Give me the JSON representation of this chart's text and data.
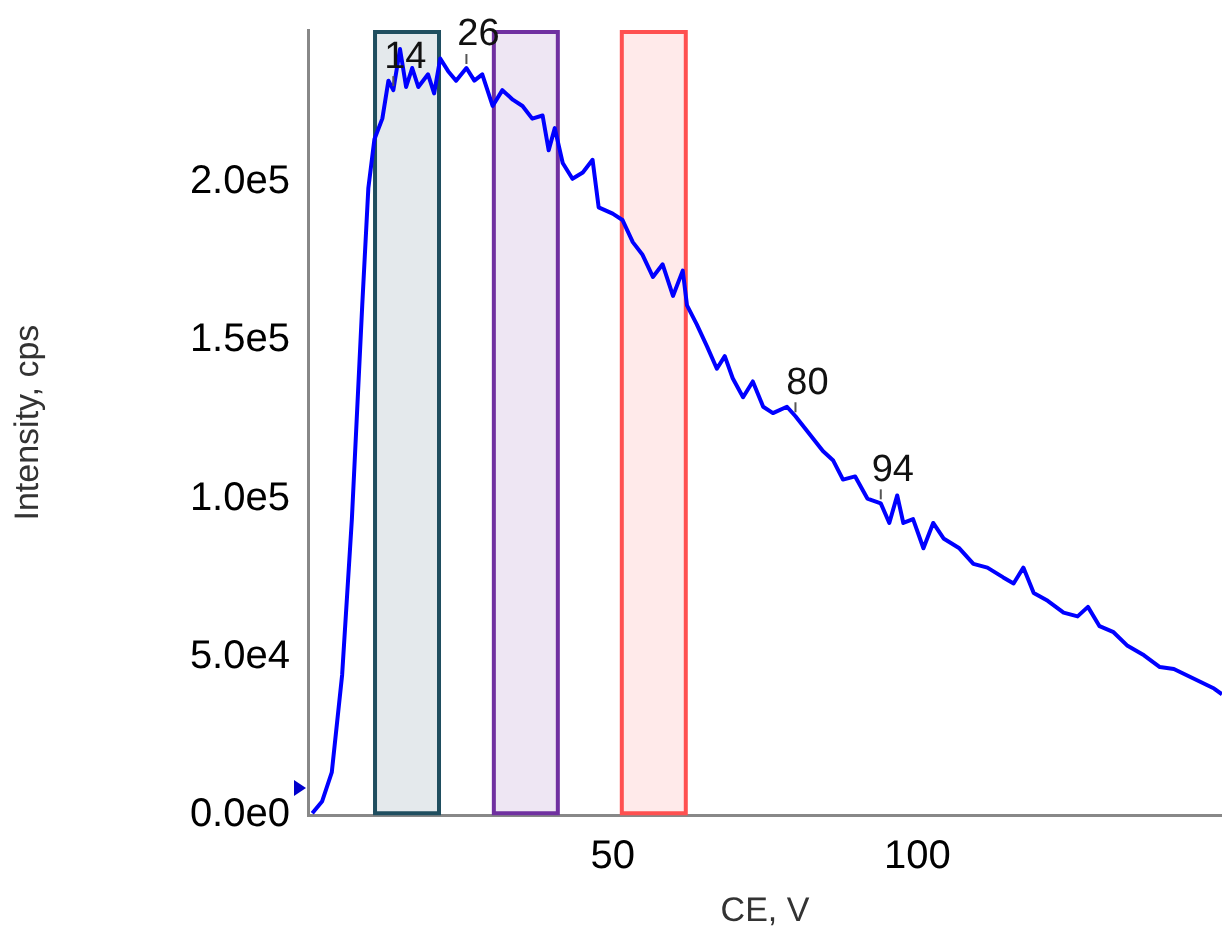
{
  "chart_data": {
    "type": "line",
    "xlabel": "CE, V",
    "ylabel": "Intensity, cps",
    "xlim": [
      0,
      150
    ],
    "xticks": [
      50,
      100
    ],
    "ylim": [
      0,
      248000
    ],
    "yticks": [
      {
        "value": 0,
        "label": "0.0e0"
      },
      {
        "value": 50000,
        "label": "5.0e4"
      },
      {
        "value": 100000,
        "label": "1.0e5"
      },
      {
        "value": 150000,
        "label": "1.5e5"
      },
      {
        "value": 200000,
        "label": "2.0e5"
      }
    ],
    "grid": false,
    "legend": false,
    "marker": "none",
    "line_style": "solid",
    "series": [
      {
        "color": "#0000ff",
        "x": [
          0.7,
          2.3,
          3.9,
          5.6,
          7.2,
          8.9,
          9.9,
          10.9,
          12.2,
          13.2,
          14,
          15.1,
          16.1,
          17.1,
          18.1,
          19.7,
          20.7,
          21.7,
          23,
          24.3,
          26,
          27.3,
          28.6,
          30.3,
          31.9,
          33.6,
          35.2,
          36.8,
          38.5,
          39.5,
          40.5,
          41.8,
          43.4,
          45.1,
          46.7,
          47.7,
          50,
          51.6,
          53.3,
          54.9,
          56.6,
          58.2,
          59.9,
          61.5,
          62.2,
          63.8,
          65.5,
          67.1,
          68.4,
          69.7,
          71.4,
          73,
          74.7,
          76.3,
          78.6,
          80,
          84.5,
          86.2,
          87.8,
          89.8,
          91.8,
          94,
          95.4,
          96.7,
          97.7,
          99.3,
          101,
          102.6,
          104.3,
          106.9,
          109.2,
          111.5,
          114.1,
          115.8,
          117.4,
          119.1,
          121.4,
          124,
          126.3,
          128,
          129.9,
          132.2,
          134.5,
          137.2,
          139.8,
          142.1,
          145.4,
          148.7,
          150
        ],
        "values": [
          600,
          4300,
          13500,
          44300,
          93500,
          161000,
          198000,
          213500,
          220000,
          232000,
          229000,
          242000,
          230000,
          236000,
          230000,
          234000,
          228000,
          239000,
          235000,
          232000,
          236000,
          232000,
          234000,
          224000,
          229000,
          226000,
          224000,
          220000,
          221000,
          210000,
          217000,
          206000,
          201000,
          203000,
          207000,
          192000,
          190000,
          188000,
          181000,
          177000,
          170000,
          174000,
          164000,
          172000,
          161000,
          155000,
          148000,
          141000,
          145000,
          138000,
          132000,
          137000,
          129000,
          127000,
          129000,
          126000,
          115000,
          112000,
          106000,
          107000,
          100000,
          98500,
          92300,
          101000,
          92300,
          93500,
          84300,
          92300,
          87400,
          84300,
          79400,
          78200,
          75100,
          73200,
          78200,
          70200,
          67700,
          64000,
          62800,
          65800,
          59700,
          57800,
          53500,
          50500,
          46800,
          46200,
          43100,
          40000,
          38200
        ]
      }
    ],
    "bands": [
      {
        "axis": "x",
        "from": 11,
        "to": 21.5,
        "color": "#1f4e5f"
      },
      {
        "axis": "x",
        "from": 30.5,
        "to": 41,
        "color": "#7030a0"
      },
      {
        "axis": "x",
        "from": 51.5,
        "to": 62,
        "color": "#ff5050"
      }
    ],
    "annotations": [
      {
        "text": "14",
        "x": 14,
        "y": 229000
      },
      {
        "text": "26",
        "x": 26,
        "y": 236000
      },
      {
        "text": "80",
        "x": 80,
        "y": 126000
      },
      {
        "text": "94",
        "x": 94,
        "y": 98500
      }
    ]
  }
}
